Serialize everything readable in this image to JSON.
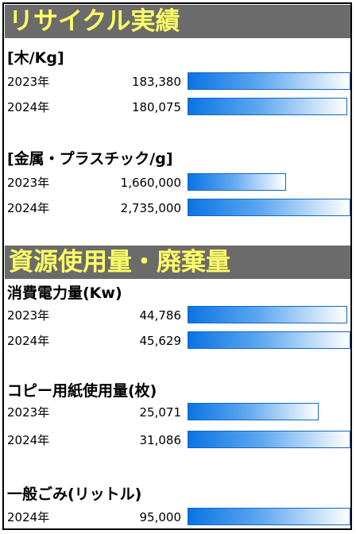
{
  "sections": {
    "recycle_title": "リサイクル実績",
    "resource_title": "資源使用量・廃棄量"
  },
  "groups": [
    {
      "title": "[木/Kg]",
      "rows": [
        {
          "year": "2023年",
          "value": "183,380",
          "fill": 1.0
        },
        {
          "year": "2024年",
          "value": "180,075",
          "fill": 0.982
        }
      ]
    },
    {
      "title": "[金属・プラスチック/g]",
      "rows": [
        {
          "year": "2023年",
          "value": "1,660,000",
          "fill": 0.607
        },
        {
          "year": "2024年",
          "value": "2,735,000",
          "fill": 1.0
        }
      ]
    },
    {
      "title": "消費電力量(Kw)",
      "rows": [
        {
          "year": "2023年",
          "value": "44,786",
          "fill": 0.982
        },
        {
          "year": "2024年",
          "value": "45,629",
          "fill": 1.0
        }
      ]
    },
    {
      "title": "コピー用紙使用量(枚)",
      "rows": [
        {
          "year": "2023年",
          "value": "25,071",
          "fill": 0.807
        },
        {
          "year": "2024年",
          "value": "31,086",
          "fill": 1.0
        }
      ]
    },
    {
      "title": "一般ごみ(リットル)",
      "rows": [
        {
          "year": "2024年",
          "value": "95,000",
          "fill": 1.0
        }
      ]
    }
  ],
  "colors": {
    "banner_bg": "#6b6b6b",
    "banner_text": "#ffff66",
    "bar_start": "#0a74e4",
    "bar_end": "#ffffff",
    "bar_border": "#1565c0"
  }
}
